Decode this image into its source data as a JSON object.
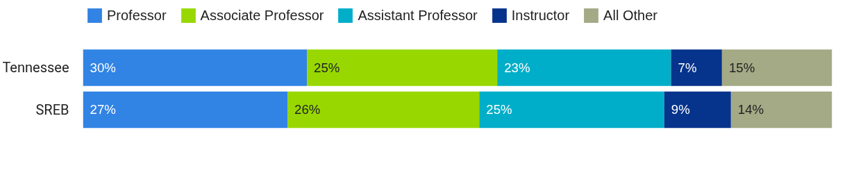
{
  "chart_data": {
    "type": "bar",
    "orientation": "horizontal",
    "stacked": true,
    "categories": [
      "Tennessee",
      "SREB"
    ],
    "series": [
      {
        "name": "Professor",
        "color": "#3183e4",
        "values": [
          29.9,
          27.3
        ],
        "value_labels": [
          "30%",
          "27%"
        ]
      },
      {
        "name": "Associate Professor",
        "color": "#98d800",
        "values": [
          25.4,
          25.6
        ],
        "value_labels": [
          "25%",
          "26%"
        ]
      },
      {
        "name": "Assistant Professor",
        "color": "#00aec9",
        "values": [
          23.2,
          24.7
        ],
        "value_labels": [
          "23%",
          "25%"
        ]
      },
      {
        "name": "Instructor",
        "color": "#06338b",
        "values": [
          6.8,
          8.9
        ],
        "value_labels": [
          "7%",
          "9%"
        ]
      },
      {
        "name": "All Other",
        "color": "#a4a986",
        "values": [
          14.7,
          13.5
        ],
        "value_labels": [
          "15%",
          "14%"
        ]
      }
    ],
    "legend": "top left",
    "grid": false
  }
}
